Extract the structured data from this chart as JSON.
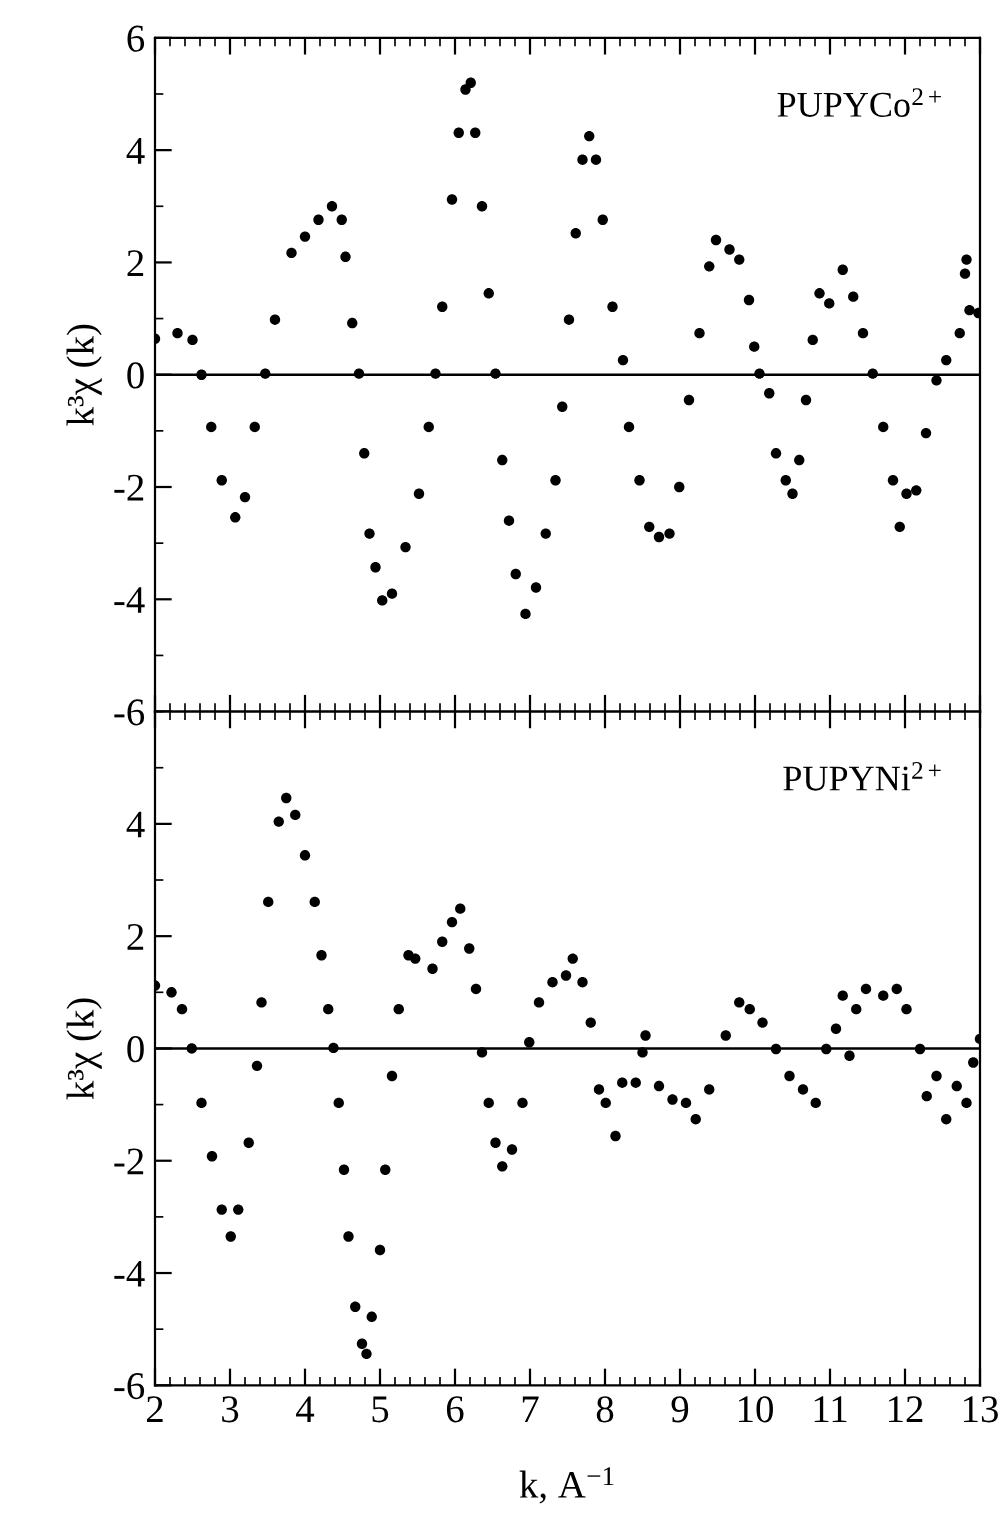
{
  "chart_data": [
    {
      "type": "scatter",
      "xlim": [
        2,
        13
      ],
      "xticks": [
        2,
        3,
        4,
        5,
        6,
        7,
        8,
        9,
        10,
        11,
        12,
        13
      ],
      "ylim": [
        -6,
        6
      ],
      "yticks": [
        -6,
        -4,
        -2,
        0,
        2,
        4,
        6
      ],
      "ylabel": "k³χ (k)",
      "tick_labels": "y",
      "marker": "circle",
      "grid": false,
      "legend": false,
      "annotations": [
        "PUPYCo$^{2+}$"
      ],
      "ref_lines": [
        {
          "axis": "y",
          "value": 0,
          "label": null,
          "color": "#000000"
        }
      ],
      "series": [
        {
          "color": "#000000",
          "x": [
            2.0,
            2.3,
            2.5,
            2.62,
            2.75,
            2.89,
            3.07,
            3.2,
            3.33,
            3.47,
            3.6,
            3.82,
            4.0,
            4.18,
            4.36,
            4.49,
            4.54,
            4.63,
            4.72,
            4.79,
            4.86,
            4.94,
            5.03,
            5.16,
            5.34,
            5.52,
            5.65,
            5.74,
            5.83,
            5.96,
            6.05,
            6.14,
            6.21,
            6.27,
            6.36,
            6.45,
            6.54,
            6.63,
            6.72,
            6.81,
            6.94,
            7.08,
            7.21,
            7.34,
            7.43,
            7.52,
            7.61,
            7.7,
            7.79,
            7.88,
            7.97,
            8.1,
            8.24,
            8.32,
            8.46,
            8.59,
            8.72,
            8.86,
            8.99,
            9.12,
            9.26,
            9.39,
            9.48,
            9.66,
            9.79,
            9.92,
            9.99,
            10.06,
            10.19,
            10.28,
            10.41,
            10.5,
            10.59,
            10.68,
            10.77,
            10.86,
            10.99,
            11.17,
            11.31,
            11.44,
            11.57,
            11.71,
            11.84,
            11.93,
            12.02,
            12.15,
            12.28,
            12.42,
            12.55,
            12.73,
            12.8,
            12.82,
            12.86,
            12.98
          ],
          "values": [
            0.64,
            0.74,
            0.62,
            0.0,
            -0.93,
            -1.88,
            -2.54,
            -2.18,
            -0.93,
            0.02,
            0.98,
            2.17,
            2.46,
            2.76,
            3.0,
            2.76,
            2.1,
            0.92,
            0.02,
            -1.4,
            -2.83,
            -3.43,
            -4.02,
            -3.9,
            -3.07,
            -2.12,
            -0.93,
            0.02,
            1.21,
            3.12,
            4.31,
            5.08,
            5.2,
            4.31,
            3.0,
            1.45,
            0.02,
            -1.52,
            -2.6,
            -3.55,
            -4.26,
            -3.79,
            -2.83,
            -1.88,
            -0.57,
            0.98,
            2.52,
            3.83,
            4.25,
            3.83,
            2.76,
            1.21,
            0.26,
            -0.93,
            -1.88,
            -2.71,
            -2.89,
            -2.83,
            -2.0,
            -0.45,
            0.74,
            1.93,
            2.4,
            2.23,
            2.05,
            1.33,
            0.5,
            0.02,
            -0.33,
            -1.4,
            -1.88,
            -2.12,
            -1.52,
            -0.45,
            0.62,
            1.45,
            1.27,
            1.87,
            1.39,
            0.74,
            0.02,
            -0.93,
            -1.88,
            -2.71,
            -2.12,
            -2.06,
            -1.04,
            -0.1,
            0.26,
            0.74,
            1.8,
            2.05,
            1.15,
            1.1
          ]
        }
      ]
    },
    {
      "type": "scatter",
      "xlim": [
        2,
        13
      ],
      "xticks": [
        2,
        3,
        4,
        5,
        6,
        7,
        8,
        9,
        10,
        11,
        12,
        13
      ],
      "ylim": [
        -6,
        6
      ],
      "yticks": [
        -6,
        -4,
        -2,
        0,
        2,
        4
      ],
      "xlabel": "k, A$^{−1}$",
      "ylabel": "k³χ (k)",
      "marker": "circle",
      "grid": false,
      "legend": false,
      "annotations": [
        "PUPYNi$^{2+}$"
      ],
      "ref_lines": [
        {
          "axis": "y",
          "value": 0,
          "label": null,
          "color": "#000000"
        }
      ],
      "series": [
        {
          "color": "#000000",
          "x": [
            2.0,
            2.22,
            2.36,
            2.49,
            2.62,
            2.76,
            2.89,
            3.01,
            3.11,
            3.25,
            3.36,
            3.42,
            3.51,
            3.65,
            3.75,
            3.87,
            4.0,
            4.13,
            4.22,
            4.31,
            4.38,
            4.45,
            4.52,
            4.58,
            4.67,
            4.76,
            4.82,
            4.89,
            5.0,
            5.07,
            5.16,
            5.25,
            5.38,
            5.47,
            5.7,
            5.83,
            5.96,
            6.07,
            6.19,
            6.28,
            6.36,
            6.45,
            6.54,
            6.63,
            6.76,
            6.9,
            6.99,
            7.12,
            7.3,
            7.48,
            7.57,
            7.7,
            7.81,
            7.92,
            8.01,
            8.14,
            8.23,
            8.41,
            8.5,
            8.54,
            8.72,
            8.9,
            9.08,
            9.21,
            9.39,
            9.61,
            9.79,
            9.93,
            10.1,
            10.28,
            10.46,
            10.64,
            10.81,
            10.95,
            11.08,
            11.17,
            11.26,
            11.35,
            11.48,
            11.71,
            11.89,
            12.02,
            12.2,
            12.29,
            12.42,
            12.55,
            12.69,
            12.82,
            12.91,
            13.0
          ],
          "values": [
            1.12,
            1.0,
            0.7,
            0.0,
            -0.97,
            -1.92,
            -2.87,
            -3.35,
            -2.87,
            -1.68,
            -0.31,
            0.82,
            2.61,
            4.04,
            4.46,
            4.16,
            3.44,
            2.61,
            1.66,
            0.7,
            0.01,
            -0.97,
            -2.16,
            -3.35,
            -4.6,
            -5.26,
            -5.44,
            -4.78,
            -3.59,
            -2.16,
            -0.49,
            0.7,
            1.66,
            1.6,
            1.42,
            1.9,
            2.25,
            2.49,
            1.78,
            1.06,
            -0.07,
            -0.97,
            -1.68,
            -2.1,
            -1.8,
            -0.97,
            0.11,
            0.82,
            1.18,
            1.3,
            1.6,
            1.18,
            0.46,
            -0.73,
            -0.97,
            -1.56,
            -0.61,
            -0.61,
            -0.07,
            0.23,
            -0.67,
            -0.91,
            -0.97,
            -1.26,
            -0.73,
            0.23,
            0.82,
            0.7,
            0.46,
            -0.01,
            -0.49,
            -0.73,
            -0.97,
            -0.01,
            0.35,
            0.94,
            -0.13,
            0.7,
            1.06,
            0.94,
            1.06,
            0.7,
            -0.01,
            -0.85,
            -0.49,
            -1.26,
            -0.67,
            -0.97,
            -0.25,
            0.17
          ]
        }
      ]
    }
  ]
}
